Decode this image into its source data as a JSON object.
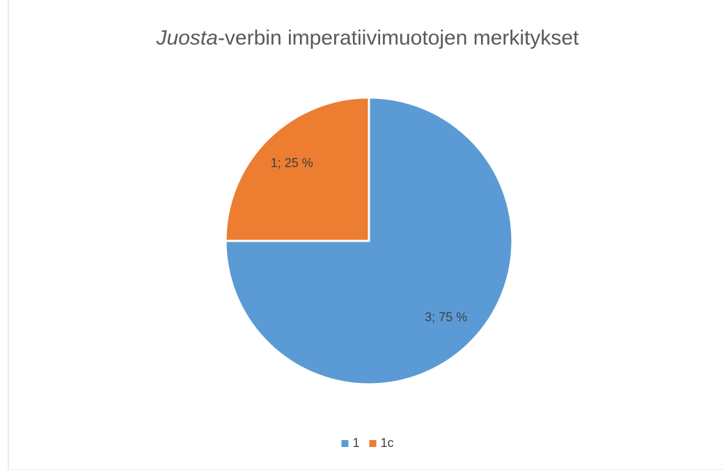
{
  "chart_data": {
    "type": "pie",
    "title": [
      "Juosta",
      "-verbin imperatiivimuotojen merkitykset"
    ],
    "categories": [
      "1",
      "1c"
    ],
    "values": [
      3,
      1
    ],
    "value_labels": [
      "3; 75 %",
      "1; 25 %"
    ],
    "colors": [
      "#5b9bd5",
      "#ed7d31"
    ],
    "legend": "bottom"
  }
}
